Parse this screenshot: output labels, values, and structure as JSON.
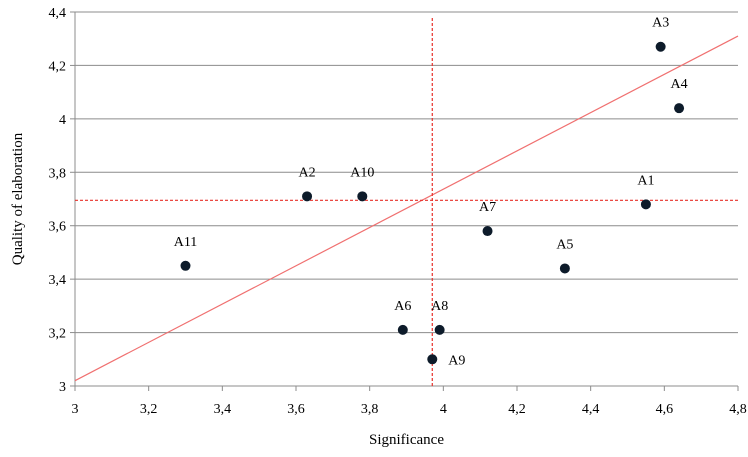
{
  "chart_data": {
    "type": "scatter",
    "title": "",
    "xlabel": "Significance",
    "ylabel": "Quality of elaboration",
    "xlim": [
      3,
      4.8
    ],
    "ylim": [
      3,
      4.4
    ],
    "x_ticks": [
      3,
      3.2,
      3.4,
      3.6,
      3.8,
      4,
      4.2,
      4.4,
      4.6,
      4.8
    ],
    "y_ticks": [
      3,
      3.2,
      3.4,
      3.6,
      3.8,
      4,
      4.2,
      4.4
    ],
    "x_tick_labels": [
      "3",
      "3,2",
      "3,4",
      "3,6",
      "3,8",
      "4",
      "4,2",
      "4,4",
      "4,6",
      "4,8"
    ],
    "y_tick_labels": [
      "3",
      "3,2",
      "3,4",
      "3,6",
      "3,8",
      "4",
      "4,2",
      "4,4"
    ],
    "grid": "horizontal",
    "points": [
      {
        "label": "A1",
        "x": 4.55,
        "y": 3.68
      },
      {
        "label": "A2",
        "x": 3.63,
        "y": 3.71
      },
      {
        "label": "A3",
        "x": 4.59,
        "y": 4.27
      },
      {
        "label": "A4",
        "x": 4.64,
        "y": 4.04
      },
      {
        "label": "A5",
        "x": 4.33,
        "y": 3.44
      },
      {
        "label": "A6",
        "x": 3.89,
        "y": 3.21
      },
      {
        "label": "A7",
        "x": 4.12,
        "y": 3.58
      },
      {
        "label": "A8",
        "x": 3.99,
        "y": 3.21
      },
      {
        "label": "A9",
        "x": 3.97,
        "y": 3.1
      },
      {
        "label": "A10",
        "x": 3.78,
        "y": 3.71
      },
      {
        "label": "A11",
        "x": 3.3,
        "y": 3.45
      }
    ],
    "reference_lines": {
      "vertical_x": 3.97,
      "horizontal_y": 3.695,
      "trend_line": [
        [
          3,
          3.02
        ],
        [
          4.8,
          4.31
        ]
      ]
    },
    "colors": {
      "point": "#0d1b2a",
      "reference": "#e8302a",
      "trend": "#f07070",
      "grid": "#8c8c8c",
      "axis": "#8c8c8c"
    }
  }
}
